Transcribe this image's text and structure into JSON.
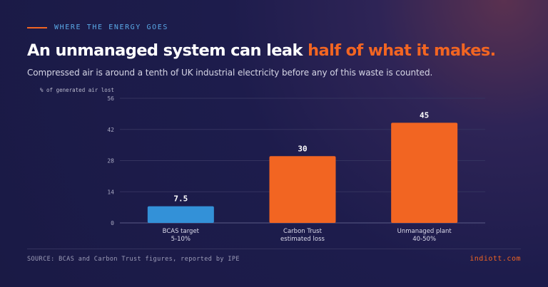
{
  "eyebrow": "WHERE THE ENERGY GOES",
  "headline": {
    "main": "An unmanaged system can leak ",
    "highlight": "half of what it makes."
  },
  "subtitle": "Compressed air is around a tenth of UK industrial electricity before any of this waste is counted.",
  "footer": {
    "source": "SOURCE: BCAS and Carbon Trust figures, reported by IPE",
    "brand": "indiott.com"
  },
  "colors": {
    "accent": "#f26522",
    "blue": "#3391d8",
    "orange": "#f26522",
    "background": "#1d1c4c"
  },
  "chart_data": {
    "type": "bar",
    "ylabel": "% of generated air lost",
    "ylim": [
      0,
      56
    ],
    "yticks": [
      0,
      14,
      28,
      42,
      56
    ],
    "grid": true,
    "categories": [
      {
        "line1": "BCAS target",
        "line2": "5-10%"
      },
      {
        "line1": "Carbon Trust",
        "line2": "estimated loss"
      },
      {
        "line1": "Unmanaged plant",
        "line2": "40-50%"
      }
    ],
    "values": [
      7.5,
      30,
      45
    ],
    "value_labels": [
      "7.5",
      "30",
      "45"
    ],
    "bar_colors": [
      "#3391d8",
      "#f26522",
      "#f26522"
    ]
  }
}
